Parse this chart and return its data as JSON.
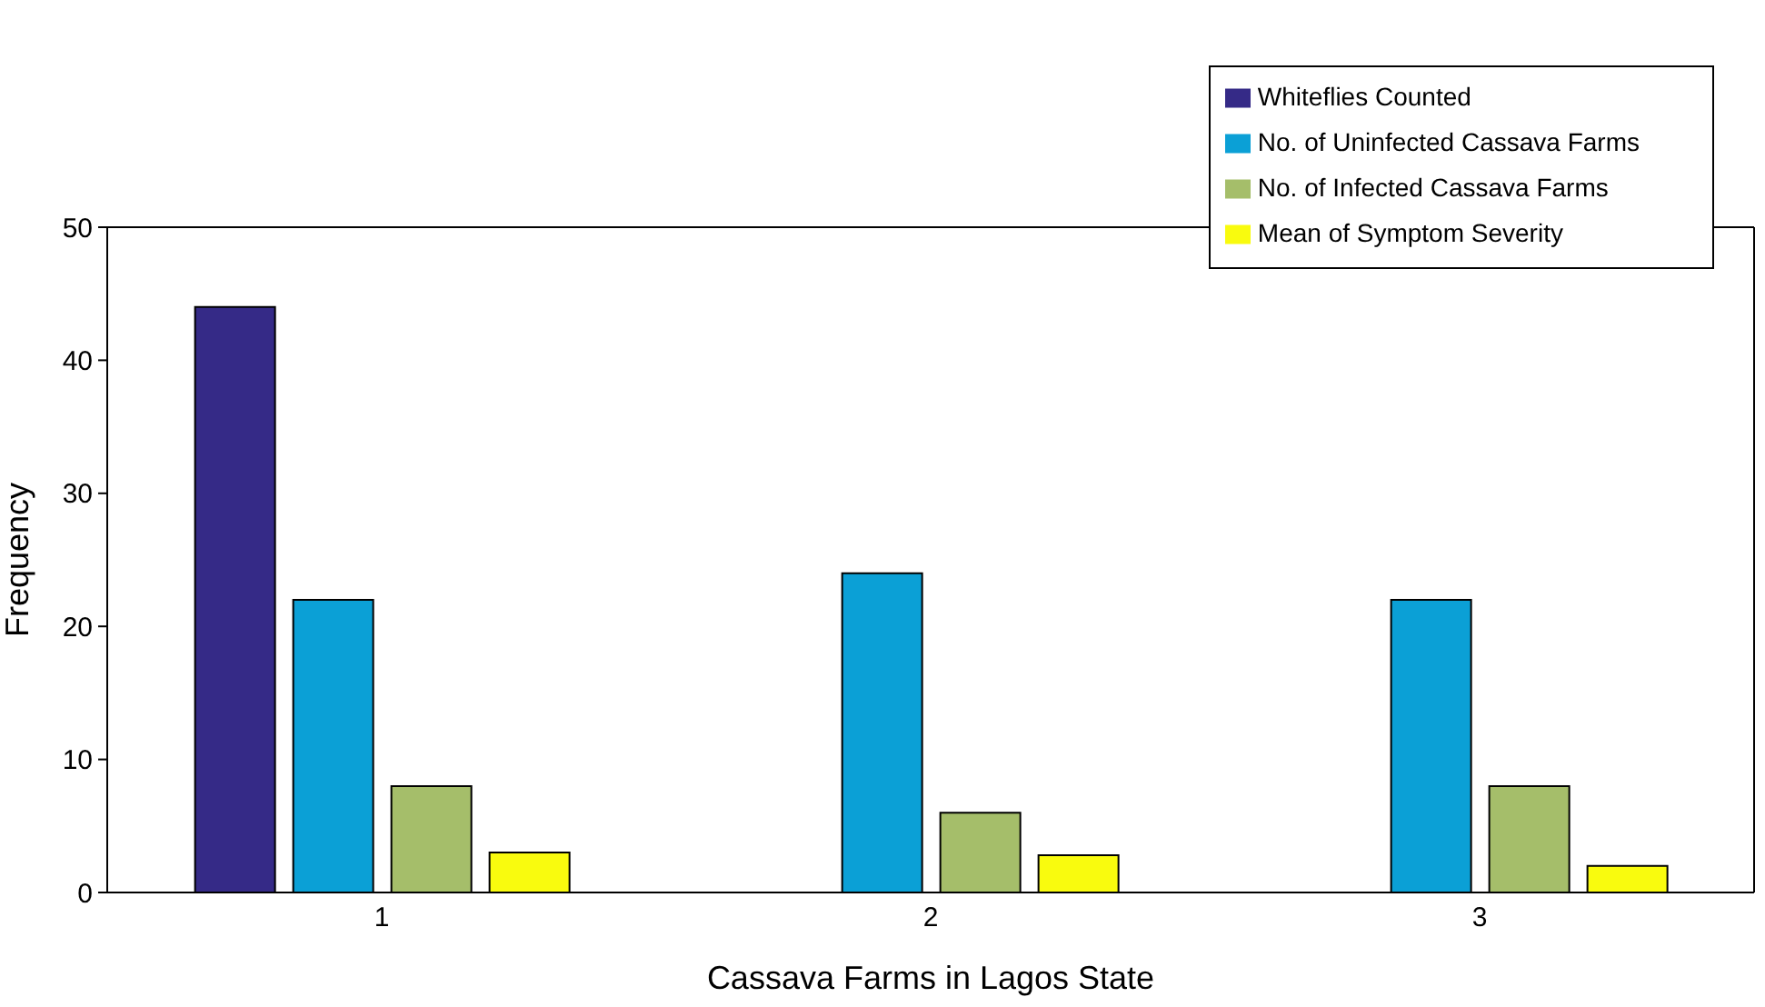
{
  "chart_data": {
    "type": "bar",
    "xlabel": "Cassava Farms in Lagos State",
    "ylabel": "Frequency",
    "categories": [
      "1",
      "2",
      "3"
    ],
    "series": [
      {
        "name": "Whiteflies Counted",
        "color": "#352a87",
        "values": [
          44,
          0,
          0
        ]
      },
      {
        "name": "No. of Uninfected Cassava Farms",
        "color": "#0ba0d6",
        "values": [
          22,
          24,
          22
        ]
      },
      {
        "name": "No. of Infected Cassava Farms",
        "color": "#a5be6a",
        "values": [
          8,
          6,
          8
        ]
      },
      {
        "name": "Mean of Symptom Severity",
        "color": "#f9fb0e",
        "values": [
          3,
          2.8,
          2
        ]
      }
    ],
    "ylim": [
      0,
      50
    ],
    "yticks": [
      0,
      10,
      20,
      30,
      40,
      50
    ],
    "legend": "top right"
  }
}
